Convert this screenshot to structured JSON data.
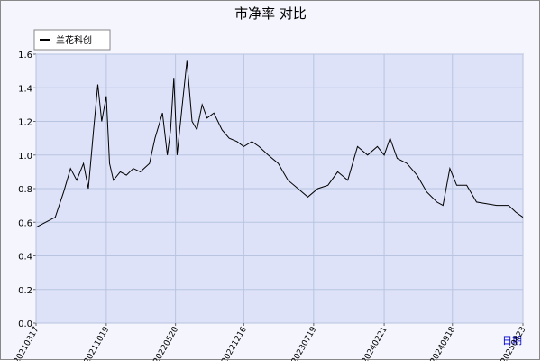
{
  "chart_data": {
    "type": "line",
    "title": "市净率  对比",
    "xlabel": "日期",
    "x": [
      "20210317",
      "20210415",
      "20210515",
      "20210610",
      "20210701",
      "20210720",
      "20210810",
      "20210825",
      "20210910",
      "20210923",
      "20211005",
      "20211019",
      "20211029",
      "20211110",
      "20211201",
      "20211220",
      "20220110",
      "20220201",
      "20220301",
      "20220318",
      "20220410",
      "20220425",
      "20220505",
      "20220515",
      "20220525",
      "20220610",
      "20220624",
      "20220710",
      "20220725",
      "20220810",
      "20220825",
      "20220915",
      "20221010",
      "20221101",
      "20221125",
      "20221216",
      "20230110",
      "20230201",
      "20230301",
      "20230401",
      "20230501",
      "20230601",
      "20230701",
      "20230801",
      "20230901",
      "20231001",
      "20231101",
      "20231201",
      "20240101",
      "20240131",
      "20240221",
      "20240310",
      "20240401",
      "20240501",
      "20240601",
      "20240701",
      "20240801",
      "20240820",
      "20240910",
      "20241001",
      "20241101",
      "20241201",
      "20250101",
      "20250201",
      "20250310",
      "20250401",
      "20250423"
    ],
    "series": [
      {
        "name": "兰花科创",
        "color": "#000000",
        "values": [
          0.57,
          0.6,
          0.63,
          0.78,
          0.92,
          0.85,
          0.95,
          0.8,
          1.15,
          1.42,
          1.2,
          1.35,
          0.95,
          0.85,
          0.9,
          0.88,
          0.92,
          0.9,
          0.95,
          1.1,
          1.25,
          1.0,
          1.15,
          1.46,
          1.0,
          1.3,
          1.56,
          1.2,
          1.15,
          1.3,
          1.22,
          1.25,
          1.15,
          1.1,
          1.08,
          1.05,
          1.08,
          1.05,
          1.0,
          0.95,
          0.85,
          0.8,
          0.75,
          0.8,
          0.82,
          0.9,
          0.85,
          1.05,
          1.0,
          1.05,
          1.0,
          1.1,
          0.98,
          0.95,
          0.88,
          0.78,
          0.72,
          0.7,
          0.92,
          0.82,
          0.82,
          0.72,
          0.71,
          0.7,
          0.7,
          0.66,
          0.63
        ]
      }
    ],
    "xlim": [
      "20210317",
      "20250423"
    ],
    "xticks": [
      "20210317",
      "20211019",
      "20220520",
      "20221216",
      "20230719",
      "20240221",
      "20240918",
      "20250423"
    ],
    "ylim": [
      0,
      1.6
    ],
    "yticks": [
      {
        "value": 0,
        "label": "0.0"
      },
      0.2,
      0.4,
      0.6,
      0.8,
      {
        "value": 1,
        "label": "1.0"
      },
      1.2,
      1.4,
      1.6
    ],
    "grid": true,
    "legend": "upper left"
  }
}
